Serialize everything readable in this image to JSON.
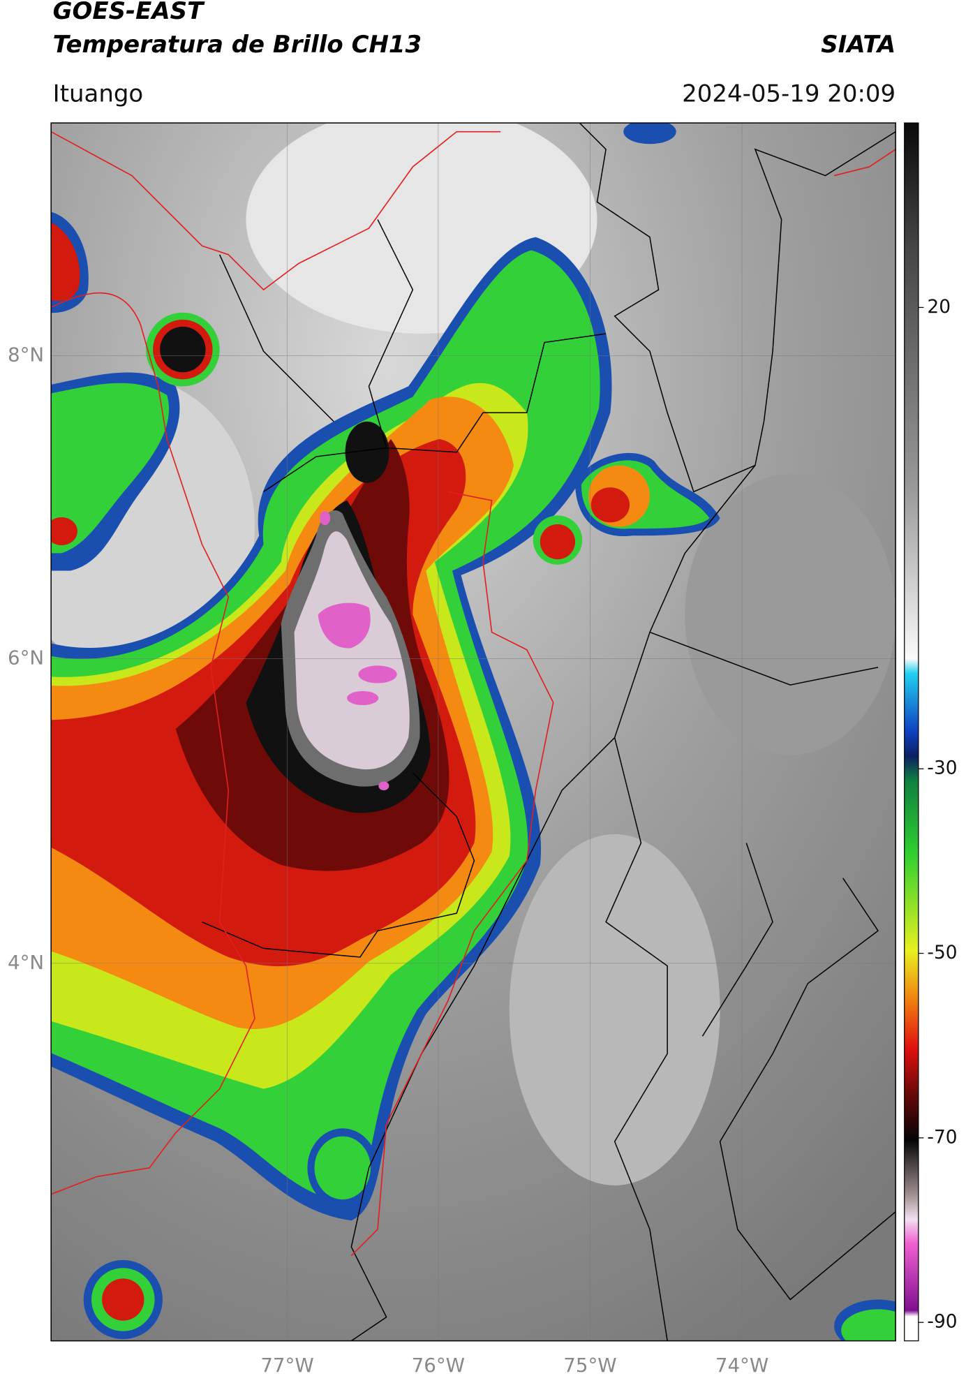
{
  "header": {
    "title": "GOES-EAST",
    "subtitle": "Temperatura de Brillo CH13",
    "agency": "SIATA",
    "location": "Ituango",
    "datetime": "2024-05-19 20:09"
  },
  "map": {
    "lat_labels": [
      "8°N",
      "6°N",
      "4°N"
    ],
    "lon_labels": [
      "77°W",
      "76°W",
      "75°W",
      "74°W"
    ]
  },
  "colorbar": {
    "lim": [
      -92,
      40
    ],
    "ticks": [
      20,
      -30,
      -50,
      -70,
      -90
    ]
  }
}
